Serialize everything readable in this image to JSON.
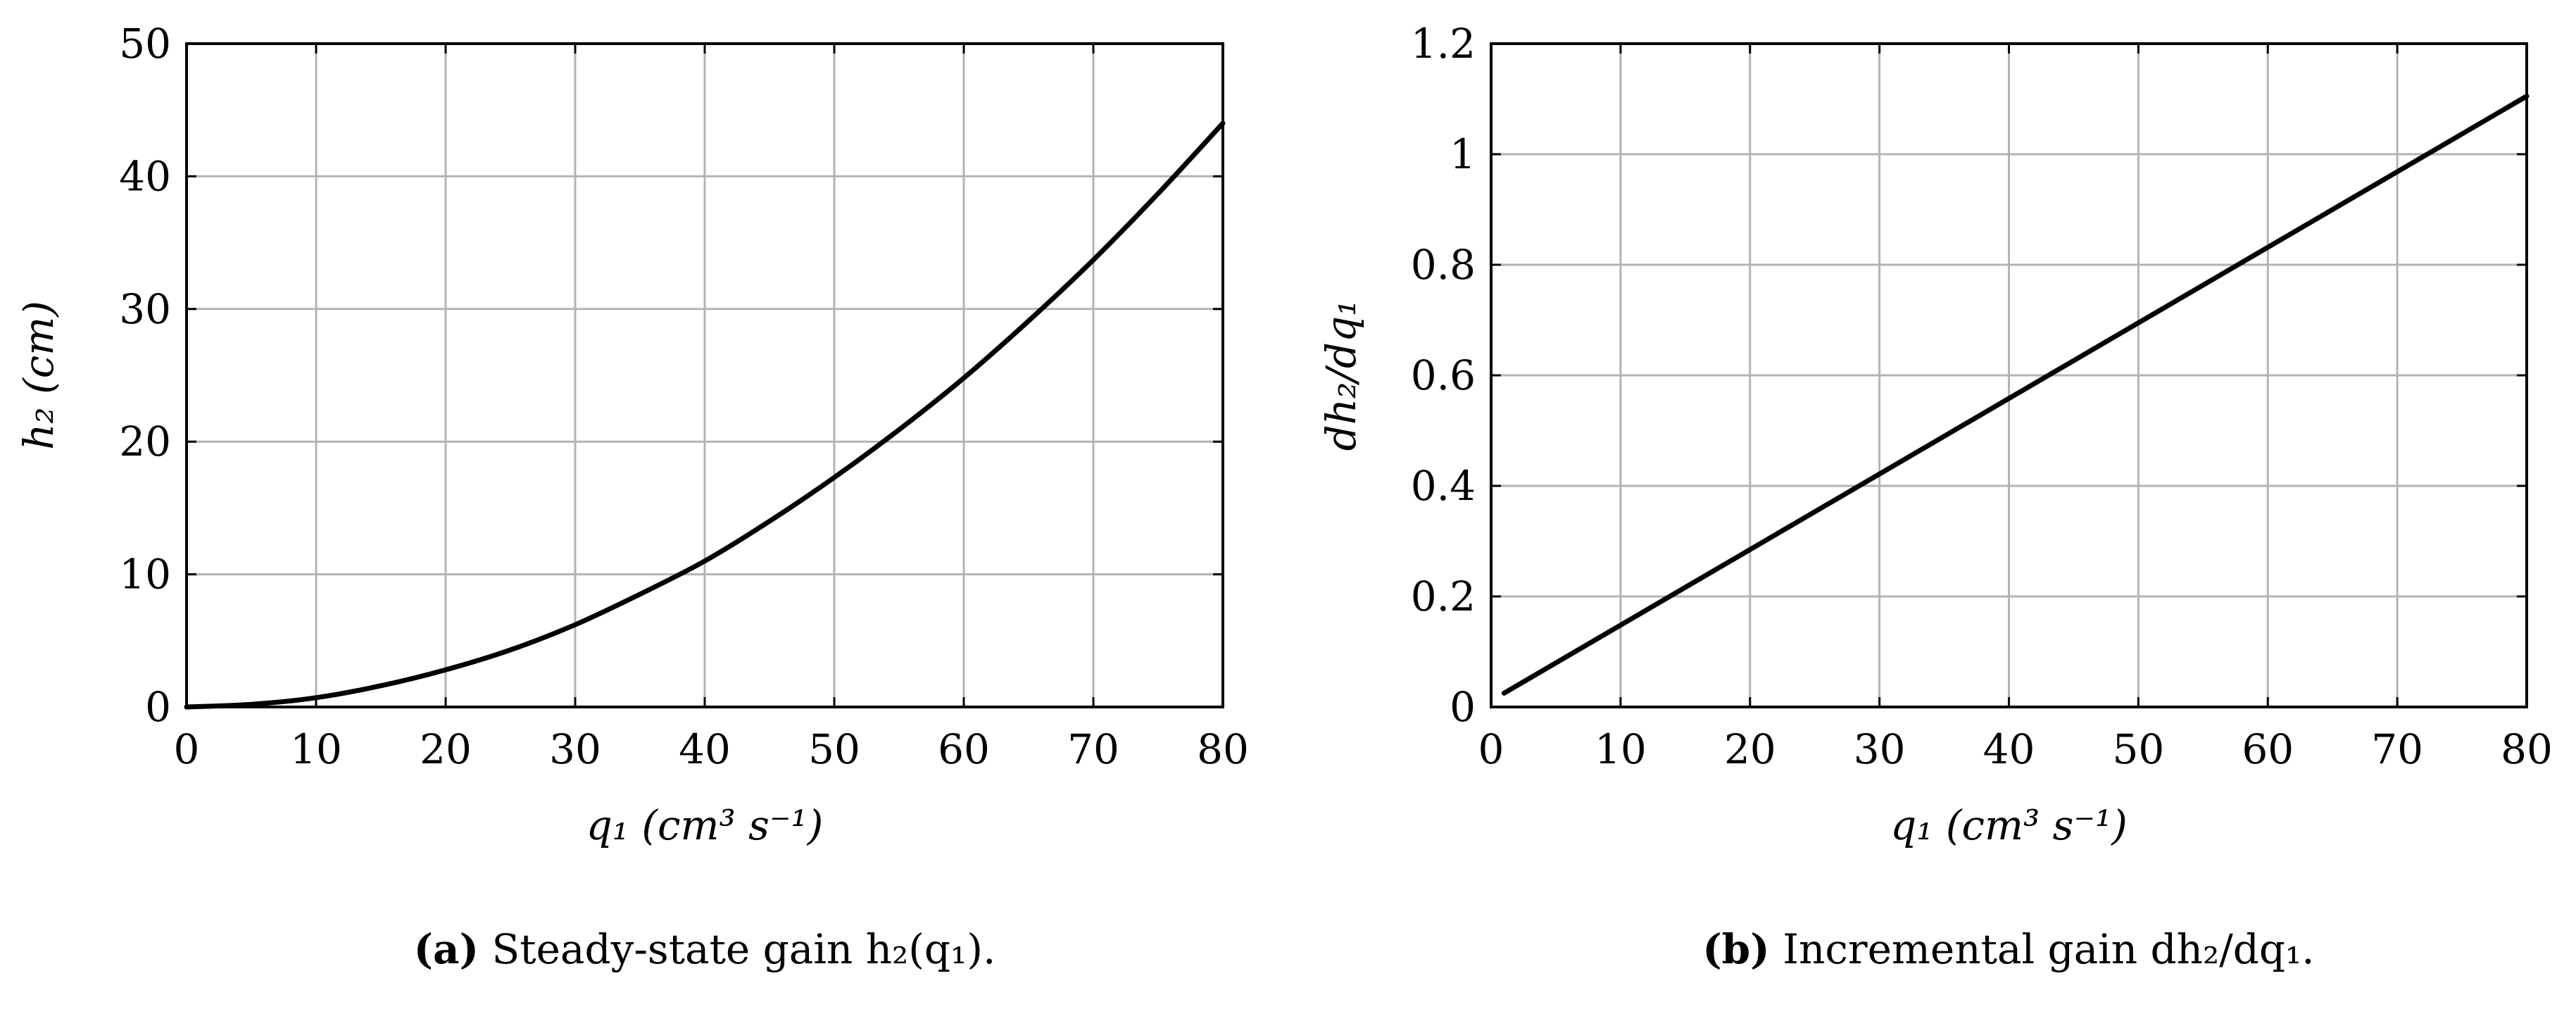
{
  "chart_data": [
    {
      "type": "line",
      "panel": "a",
      "caption_label": "(a)",
      "caption_text": "Steady-state gain h₂(q₁).",
      "xlabel": "q₁ (cm³ s⁻¹)",
      "ylabel": "h₂ (cm)",
      "xlim": [
        0,
        80
      ],
      "ylim": [
        0,
        50
      ],
      "xticks": [
        "0",
        "10",
        "20",
        "30",
        "40",
        "50",
        "60",
        "70",
        "80"
      ],
      "yticks": [
        "0",
        "10",
        "20",
        "30",
        "40",
        "50"
      ],
      "grid": true,
      "series": [
        {
          "name": "h2",
          "x": [
            0,
            5,
            10,
            15,
            20,
            25,
            30,
            35,
            40,
            45,
            50,
            55,
            60,
            65,
            70,
            75,
            80
          ],
          "y": [
            0,
            0.2,
            0.7,
            1.6,
            2.8,
            4.3,
            6.2,
            8.5,
            11.0,
            14.0,
            17.3,
            20.9,
            24.8,
            29.1,
            33.7,
            38.7,
            44.0
          ]
        }
      ]
    },
    {
      "type": "line",
      "panel": "b",
      "caption_label": "(b)",
      "caption_text": "Incremental gain dh₂/dq₁.",
      "xlabel": "q₁ (cm³ s⁻¹)",
      "ylabel": "dh₂/dq₁",
      "xlim": [
        0,
        80
      ],
      "ylim": [
        0,
        1.2
      ],
      "xticks": [
        "0",
        "10",
        "20",
        "30",
        "40",
        "50",
        "60",
        "70",
        "80"
      ],
      "yticks": [
        "0",
        "0.2",
        "0.4",
        "0.6",
        "0.8",
        "1",
        "1.2"
      ],
      "grid": true,
      "series": [
        {
          "name": "dh2/dq1",
          "x": [
            1,
            80
          ],
          "y": [
            0.025,
            1.105
          ]
        }
      ]
    }
  ]
}
